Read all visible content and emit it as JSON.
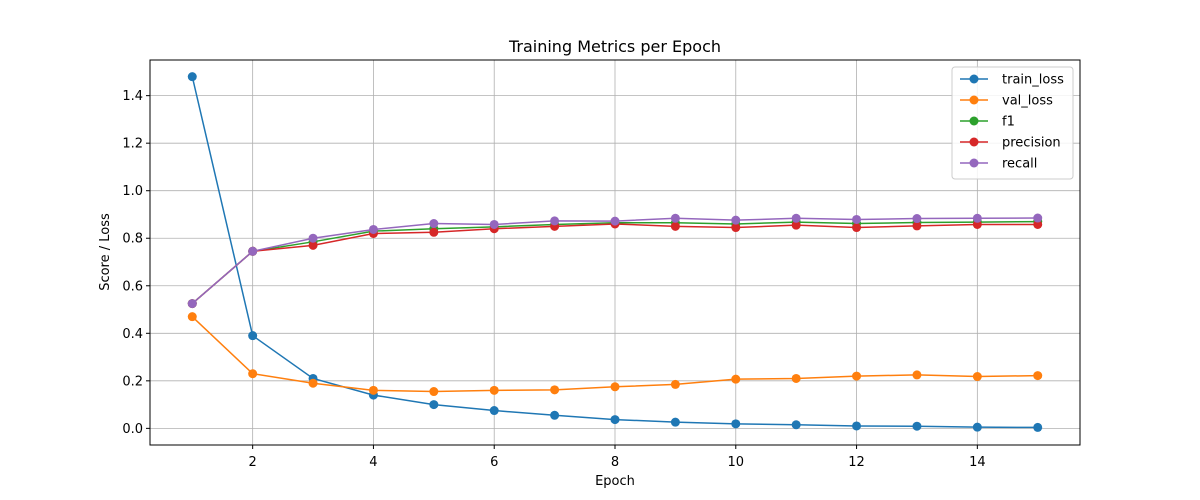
{
  "chart_data": {
    "type": "line",
    "title": "Training Metrics per Epoch",
    "xlabel": "Epoch",
    "ylabel": "Score / Loss",
    "xlim": [
      0.3,
      15.7
    ],
    "ylim": [
      -0.07,
      1.55
    ],
    "xticks": [
      2,
      4,
      6,
      8,
      10,
      12,
      14
    ],
    "yticks": [
      0.0,
      0.2,
      0.4,
      0.6,
      0.8,
      1.0,
      1.2,
      1.4
    ],
    "grid": true,
    "legend_position": "top-right",
    "x": [
      1,
      2,
      3,
      4,
      5,
      6,
      7,
      8,
      9,
      10,
      11,
      12,
      13,
      14,
      15
    ],
    "series": [
      {
        "name": "train_loss",
        "color": "#1f77b4",
        "values": [
          1.48,
          0.39,
          0.21,
          0.14,
          0.1,
          0.075,
          0.055,
          0.037,
          0.026,
          0.019,
          0.015,
          0.01,
          0.009,
          0.005,
          0.004
        ]
      },
      {
        "name": "val_loss",
        "color": "#ff7f0e",
        "values": [
          0.47,
          0.23,
          0.19,
          0.16,
          0.155,
          0.16,
          0.162,
          0.175,
          0.185,
          0.207,
          0.21,
          0.22,
          0.225,
          0.218,
          0.222
        ]
      },
      {
        "name": "f1",
        "color": "#2ca02c",
        "values": [
          0.525,
          0.745,
          0.785,
          0.83,
          0.84,
          0.848,
          0.858,
          0.865,
          0.865,
          0.86,
          0.868,
          0.862,
          0.866,
          0.868,
          0.87
        ]
      },
      {
        "name": "precision",
        "color": "#d62728",
        "values": [
          0.525,
          0.745,
          0.77,
          0.82,
          0.825,
          0.84,
          0.85,
          0.86,
          0.85,
          0.845,
          0.855,
          0.845,
          0.852,
          0.858,
          0.858
        ]
      },
      {
        "name": "recall",
        "color": "#9467bd",
        "values": [
          0.525,
          0.745,
          0.8,
          0.837,
          0.862,
          0.858,
          0.873,
          0.872,
          0.884,
          0.876,
          0.884,
          0.879,
          0.883,
          0.884,
          0.885
        ]
      }
    ]
  }
}
